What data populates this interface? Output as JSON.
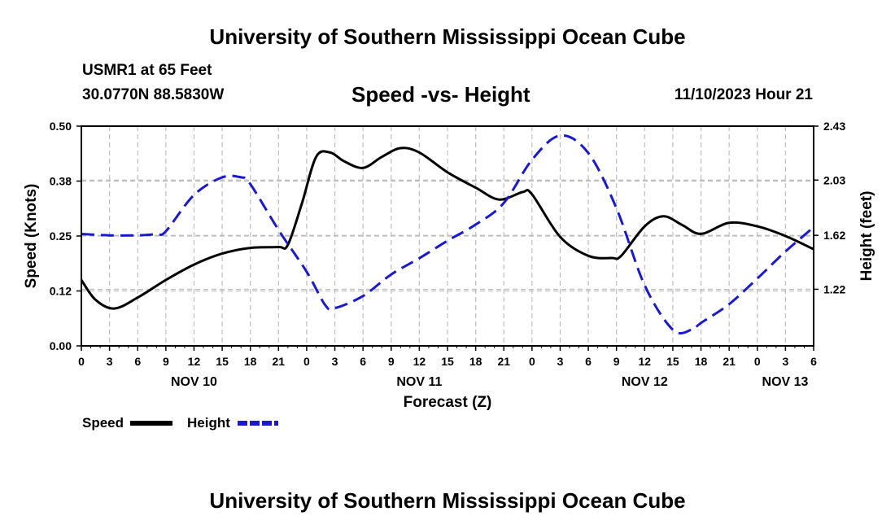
{
  "header": {
    "title": "University of Southern Mississippi Ocean Cube",
    "station": "USMR1 at 65 Feet",
    "coords": "30.0770N  88.5830W",
    "subtitle": "Speed -vs- Height",
    "datetime": "11/10/2023 Hour 21"
  },
  "footer": {
    "title": "University of Southern Mississippi Ocean Cube"
  },
  "chart_data": {
    "type": "line",
    "title": "Speed -vs- Height",
    "xlabel": "Forecast (Z)",
    "ylabel": "Speed (Knots)",
    "y2label": "Height (feet)",
    "x_unit": "hours since NOV 10 00Z",
    "xlim": [
      0,
      78
    ],
    "ylim": [
      0,
      0.5
    ],
    "y2lim": [
      0.8,
      2.43
    ],
    "x_ticks": [
      {
        "x": 0,
        "label": "0"
      },
      {
        "x": 3,
        "label": "3"
      },
      {
        "x": 6,
        "label": "6"
      },
      {
        "x": 9,
        "label": "9"
      },
      {
        "x": 12,
        "label": "12"
      },
      {
        "x": 15,
        "label": "15"
      },
      {
        "x": 18,
        "label": "18"
      },
      {
        "x": 21,
        "label": "21"
      },
      {
        "x": 24,
        "label": "0"
      },
      {
        "x": 27,
        "label": "3"
      },
      {
        "x": 30,
        "label": "6"
      },
      {
        "x": 33,
        "label": "9"
      },
      {
        "x": 36,
        "label": "12"
      },
      {
        "x": 39,
        "label": "15"
      },
      {
        "x": 42,
        "label": "18"
      },
      {
        "x": 45,
        "label": "21"
      },
      {
        "x": 48,
        "label": "0"
      },
      {
        "x": 51,
        "label": "3"
      },
      {
        "x": 54,
        "label": "6"
      },
      {
        "x": 57,
        "label": "9"
      },
      {
        "x": 60,
        "label": "12"
      },
      {
        "x": 63,
        "label": "15"
      },
      {
        "x": 66,
        "label": "18"
      },
      {
        "x": 69,
        "label": "21"
      },
      {
        "x": 72,
        "label": "0"
      },
      {
        "x": 75,
        "label": "3"
      },
      {
        "x": 78,
        "label": "6"
      }
    ],
    "day_labels": [
      {
        "x": 12,
        "label": "NOV 10"
      },
      {
        "x": 36,
        "label": "NOV 11"
      },
      {
        "x": 60,
        "label": "NOV 12"
      },
      {
        "x": 78,
        "label": "NOV 13"
      }
    ],
    "y_ticks": [
      {
        "y": 0.0,
        "label": "0.00"
      },
      {
        "y": 0.125,
        "label": "0.12"
      },
      {
        "y": 0.25,
        "label": "0.25"
      },
      {
        "y": 0.375,
        "label": "0.38"
      },
      {
        "y": 0.5,
        "label": "0.50"
      }
    ],
    "y2_ticks": [
      {
        "y": 1.22,
        "label": "1.22"
      },
      {
        "y": 1.62,
        "label": "1.62"
      },
      {
        "y": 2.03,
        "label": "2.03"
      },
      {
        "y": 2.43,
        "label": "2.43"
      }
    ],
    "grid": true,
    "legend": {
      "position": "bottom-left",
      "entries": [
        {
          "name": "Speed",
          "color": "#000000",
          "dash": "solid"
        },
        {
          "name": "Height",
          "color": "#1a1acc",
          "dash": "dashed"
        }
      ]
    },
    "series": [
      {
        "name": "Speed",
        "axis": "left",
        "color": "#000000",
        "x": [
          0,
          1.5,
          3.5,
          6,
          9,
          12,
          15,
          18,
          21,
          22,
          23.5,
          25,
          26.5,
          28,
          30,
          32,
          34,
          36,
          39,
          42,
          44.5,
          47,
          48,
          51,
          54,
          56.5,
          57.5,
          60,
          62,
          64,
          66,
          69,
          72,
          75,
          78
        ],
        "values": [
          0.15,
          0.105,
          0.085,
          0.11,
          0.15,
          0.185,
          0.21,
          0.223,
          0.225,
          0.23,
          0.325,
          0.43,
          0.44,
          0.42,
          0.405,
          0.43,
          0.45,
          0.44,
          0.395,
          0.36,
          0.333,
          0.35,
          0.345,
          0.248,
          0.205,
          0.2,
          0.205,
          0.272,
          0.295,
          0.275,
          0.255,
          0.28,
          0.272,
          0.25,
          0.22
        ]
      },
      {
        "name": "Height",
        "axis": "right",
        "color": "#1a1acc",
        "x": [
          0,
          3,
          6,
          8,
          9,
          12,
          15,
          17,
          18,
          21,
          24,
          26,
          27,
          30,
          33,
          36,
          39,
          42,
          45,
          48,
          51,
          54,
          57,
          60,
          63,
          65,
          66,
          69,
          72,
          75,
          78
        ],
        "values": [
          1.63,
          1.62,
          1.62,
          1.63,
          1.65,
          1.92,
          2.05,
          2.05,
          2.0,
          1.66,
          1.35,
          1.1,
          1.08,
          1.17,
          1.33,
          1.45,
          1.58,
          1.7,
          1.86,
          2.18,
          2.36,
          2.23,
          1.82,
          1.25,
          0.92,
          0.92,
          0.97,
          1.11,
          1.3,
          1.5,
          1.68
        ]
      }
    ]
  }
}
